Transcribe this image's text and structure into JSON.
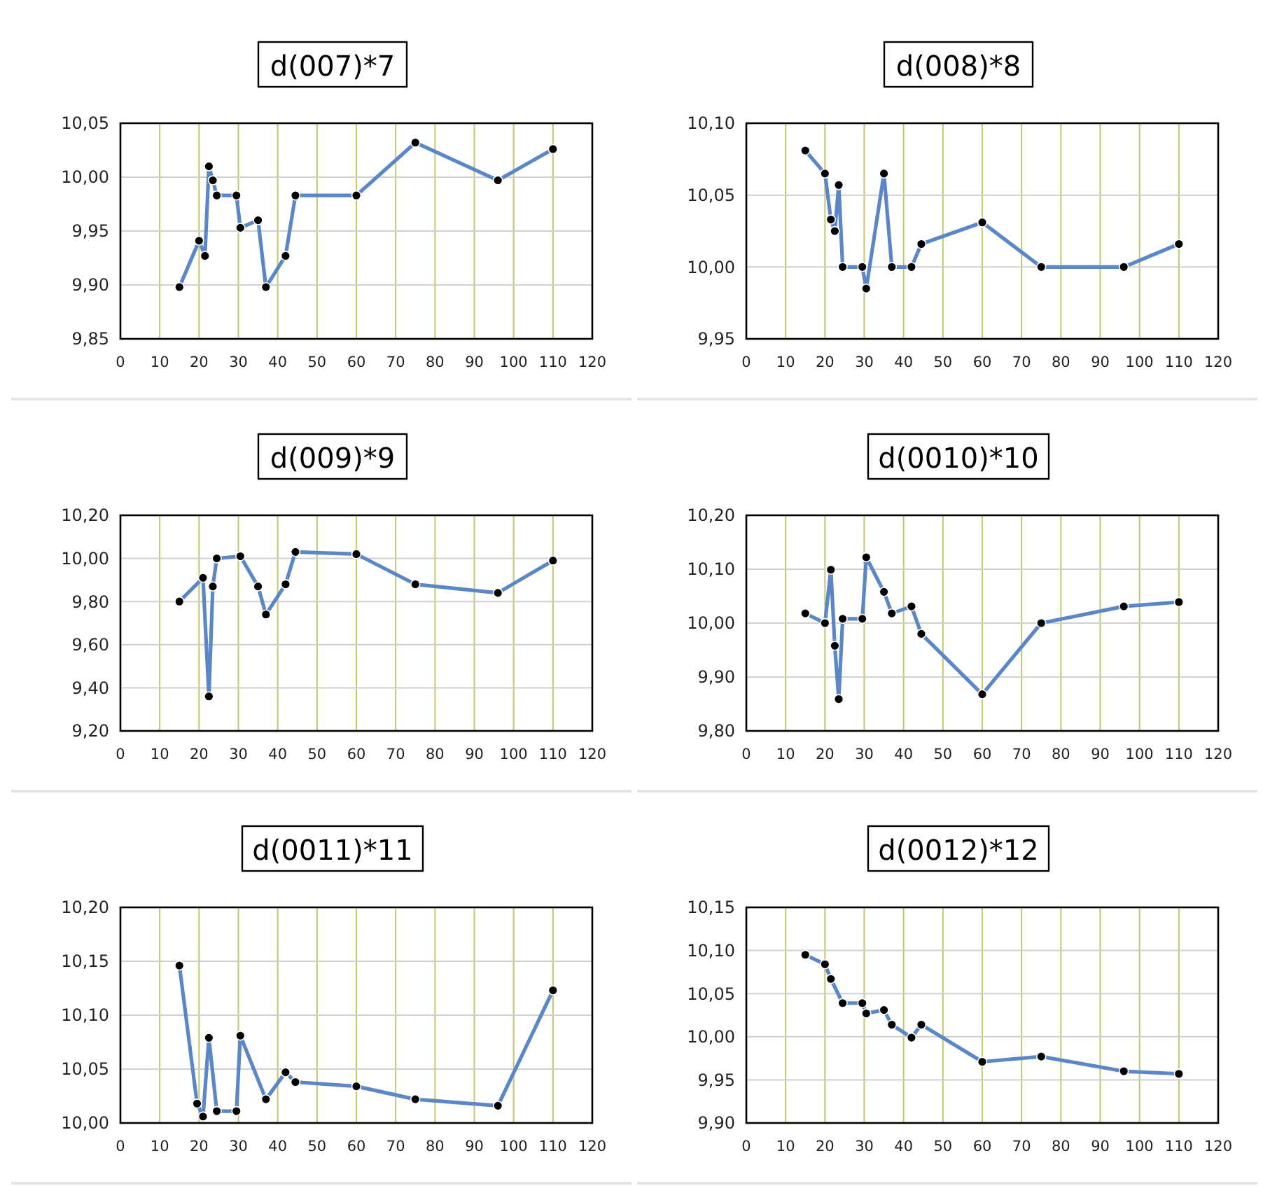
{
  "chart_data": [
    {
      "type": "line",
      "title": "d(007)*7",
      "x": [
        15,
        20,
        21.5,
        22.5,
        23.5,
        24.5,
        29.5,
        30.5,
        35,
        37,
        42,
        44.5,
        60,
        75,
        96,
        110
      ],
      "series": [
        {
          "color": "#5b87c6",
          "values": [
            9.898,
            9.941,
            9.927,
            10.01,
            9.997,
            9.983,
            9.983,
            9.953,
            9.96,
            9.898,
            9.927,
            9.983,
            9.983,
            10.032,
            9.997,
            10.026
          ]
        }
      ],
      "xlim": [
        0,
        120
      ],
      "xticks": [
        0,
        10,
        20,
        30,
        40,
        50,
        60,
        70,
        80,
        90,
        100,
        110,
        120
      ],
      "ylim": [
        9.85,
        10.05
      ],
      "yticks": [
        {
          "value": 9.85,
          "label": "9,85"
        },
        {
          "value": 9.9,
          "label": "9,90"
        },
        {
          "value": 9.95,
          "label": "9,95"
        },
        {
          "value": 10,
          "label": "10,00"
        },
        {
          "value": 10.05,
          "label": "10,05"
        }
      ],
      "grid": true,
      "marker": "circle",
      "line_style": "solid"
    },
    {
      "type": "line",
      "title": "d(008)*8",
      "x": [
        15,
        20,
        21.5,
        22.5,
        23.5,
        24.5,
        29.5,
        30.5,
        35,
        37,
        42,
        44.5,
        60,
        75,
        96,
        110
      ],
      "series": [
        {
          "color": "#5b87c6",
          "values": [
            10.081,
            10.065,
            10.033,
            10.025,
            10.057,
            10.0,
            10.0,
            9.985,
            10.065,
            10.0,
            10.0,
            10.016,
            10.031,
            10.0,
            10.0,
            10.016
          ]
        }
      ],
      "xlim": [
        0,
        120
      ],
      "xticks": [
        0,
        10,
        20,
        30,
        40,
        50,
        60,
        70,
        80,
        90,
        100,
        110,
        120
      ],
      "ylim": [
        9.95,
        10.1
      ],
      "yticks": [
        {
          "value": 9.95,
          "label": "9,95"
        },
        {
          "value": 10,
          "label": "10,00"
        },
        {
          "value": 10.05,
          "label": "10,05"
        },
        {
          "value": 10.1,
          "label": "10,10"
        }
      ],
      "grid": true,
      "marker": "circle",
      "line_style": "solid"
    },
    {
      "type": "line",
      "title": "d(009)*9",
      "x": [
        15,
        21,
        22.5,
        23.5,
        24.5,
        30.5,
        35,
        37,
        42,
        44.5,
        60,
        75,
        96,
        110
      ],
      "series": [
        {
          "color": "#5b87c6",
          "values": [
            9.8,
            9.91,
            9.36,
            9.87,
            10.0,
            10.01,
            9.87,
            9.74,
            9.88,
            10.03,
            10.02,
            9.88,
            9.84,
            9.99
          ]
        }
      ],
      "xlim": [
        0,
        120
      ],
      "xticks": [
        0,
        10,
        20,
        30,
        40,
        50,
        60,
        70,
        80,
        90,
        100,
        110,
        120
      ],
      "ylim": [
        9.2,
        10.2
      ],
      "yticks": [
        {
          "value": 9.2,
          "label": "9,20"
        },
        {
          "value": 9.4,
          "label": "9,40"
        },
        {
          "value": 9.6,
          "label": "9,60"
        },
        {
          "value": 9.8,
          "label": "9,80"
        },
        {
          "value": 10,
          "label": "10,00"
        },
        {
          "value": 10.2,
          "label": "10,20"
        }
      ],
      "grid": true,
      "marker": "circle",
      "line_style": "solid"
    },
    {
      "type": "line",
      "title": "d(0010)*10",
      "x": [
        15,
        20,
        21.5,
        22.5,
        23.5,
        24.5,
        29.5,
        30.5,
        35,
        37,
        42,
        44.5,
        60,
        75,
        96,
        110
      ],
      "series": [
        {
          "color": "#5b87c6",
          "values": [
            10.018,
            10.0,
            10.099,
            9.958,
            9.859,
            10.008,
            10.008,
            10.122,
            10.058,
            10.018,
            10.031,
            9.98,
            9.868,
            10.0,
            10.031,
            10.039
          ]
        }
      ],
      "xlim": [
        0,
        120
      ],
      "xticks": [
        0,
        10,
        20,
        30,
        40,
        50,
        60,
        70,
        80,
        90,
        100,
        110,
        120
      ],
      "ylim": [
        9.8,
        10.2
      ],
      "yticks": [
        {
          "value": 9.8,
          "label": "9,80"
        },
        {
          "value": 9.9,
          "label": "9,90"
        },
        {
          "value": 10,
          "label": "10,00"
        },
        {
          "value": 10.1,
          "label": "10,10"
        },
        {
          "value": 10.2,
          "label": "10,20"
        }
      ],
      "grid": true,
      "marker": "circle",
      "line_style": "solid"
    },
    {
      "type": "line",
      "title": "d(0011)*11",
      "x": [
        15,
        19.5,
        21,
        22.5,
        24.5,
        29.5,
        30.5,
        37,
        42,
        44.5,
        60,
        75,
        96,
        110
      ],
      "series": [
        {
          "color": "#5b87c6",
          "values": [
            10.146,
            10.018,
            10.006,
            10.079,
            10.011,
            10.011,
            10.081,
            10.022,
            10.047,
            10.038,
            10.034,
            10.022,
            10.016,
            10.123
          ]
        }
      ],
      "xlim": [
        0,
        120
      ],
      "xticks": [
        0,
        10,
        20,
        30,
        40,
        50,
        60,
        70,
        80,
        90,
        100,
        110,
        120
      ],
      "ylim": [
        10.0,
        10.2
      ],
      "yticks": [
        {
          "value": 10,
          "label": "10,00"
        },
        {
          "value": 10.05,
          "label": "10,05"
        },
        {
          "value": 10.1,
          "label": "10,10"
        },
        {
          "value": 10.15,
          "label": "10,15"
        },
        {
          "value": 10.2,
          "label": "10,20"
        }
      ],
      "grid": true,
      "marker": "circle",
      "line_style": "solid"
    },
    {
      "type": "line",
      "title": "d(0012)*12",
      "x": [
        15,
        20,
        21.5,
        24.5,
        29.5,
        30.5,
        35,
        37,
        42,
        44.5,
        60,
        75,
        96,
        110
      ],
      "series": [
        {
          "color": "#5b87c6",
          "values": [
            10.095,
            10.084,
            10.067,
            10.039,
            10.039,
            10.027,
            10.031,
            10.014,
            9.999,
            10.014,
            9.971,
            9.977,
            9.96,
            9.957
          ]
        }
      ],
      "xlim": [
        0,
        120
      ],
      "xticks": [
        0,
        10,
        20,
        30,
        40,
        50,
        60,
        70,
        80,
        90,
        100,
        110,
        120
      ],
      "ylim": [
        9.9,
        10.15
      ],
      "yticks": [
        {
          "value": 9.9,
          "label": "9,90"
        },
        {
          "value": 9.95,
          "label": "9,95"
        },
        {
          "value": 10,
          "label": "10,00"
        },
        {
          "value": 10.05,
          "label": "10,05"
        },
        {
          "value": 10.1,
          "label": "10,10"
        },
        {
          "value": 10.15,
          "label": "10,15"
        }
      ],
      "grid": true,
      "marker": "circle",
      "line_style": "solid"
    }
  ]
}
